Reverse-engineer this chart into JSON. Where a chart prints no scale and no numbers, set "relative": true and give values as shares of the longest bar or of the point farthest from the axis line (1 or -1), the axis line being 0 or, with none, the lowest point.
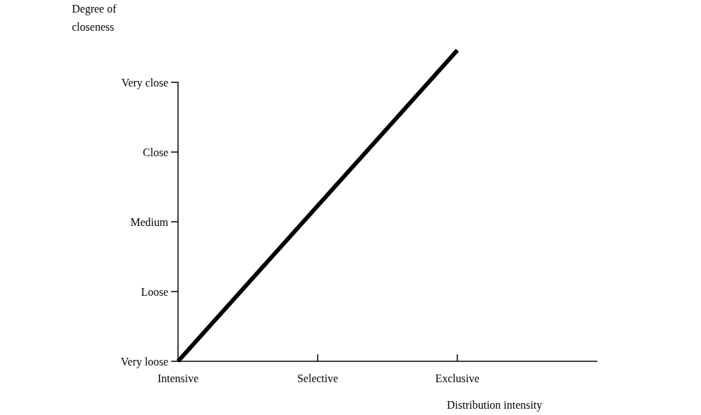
{
  "chart_data": {
    "type": "line",
    "relative": true,
    "xlabel": "Distribution intensity",
    "ylabel": "Degree of\ncloseness",
    "categories": [
      "Intensive",
      "Selective",
      "Exclusive",
      null
    ],
    "y_categories": [
      "Very close",
      "Close",
      "Medium",
      "Loose",
      "Very loose"
    ],
    "values": [
      0,
      0.5,
      1,
      null
    ],
    "color": "#000000",
    "marker": "none",
    "line_style": "solid",
    "grid": false
  }
}
